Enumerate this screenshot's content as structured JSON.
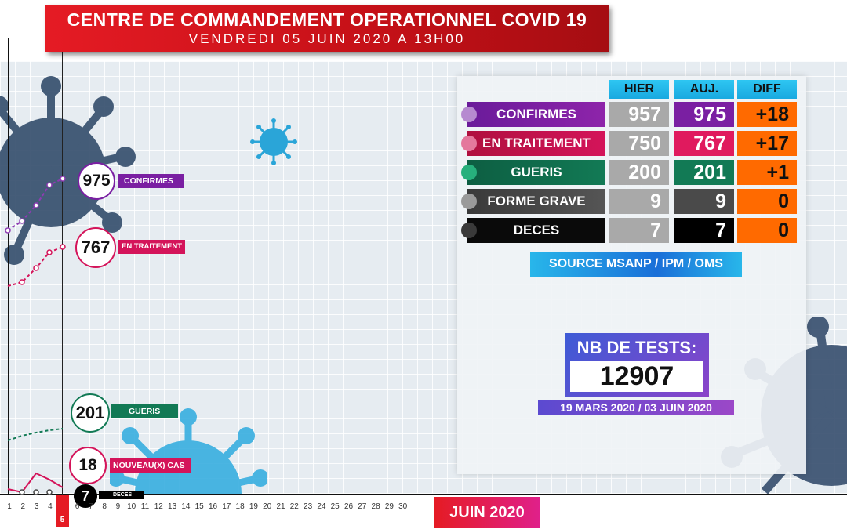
{
  "header": {
    "title": "CENTRE DE COMMANDEMENT OPERATIONNEL COVID 19",
    "subtitle": "VENDREDI 05 JUIN 2020 A 13H00"
  },
  "table": {
    "columns": [
      "HIER",
      "AUJ.",
      "DIFF"
    ],
    "rows": [
      {
        "label": "CONFIRMES",
        "hier": "957",
        "auj": "975",
        "diff": "+18",
        "color": "#7a1fa2"
      },
      {
        "label": "EN TRAITEMENT",
        "hier": "750",
        "auj": "767",
        "diff": "+17",
        "color": "#d4145a"
      },
      {
        "label": "GUERIS",
        "hier": "200",
        "auj": "201",
        "diff": "+1",
        "color": "#127a55"
      },
      {
        "label": "FORME GRAVE",
        "hier": "9",
        "auj": "9",
        "diff": "0",
        "color": "#4a4a4a"
      },
      {
        "label": "DECES",
        "hier": "7",
        "auj": "7",
        "diff": "0",
        "color": "#000000"
      }
    ],
    "source": "SOURCE MSANP / IPM / OMS"
  },
  "tests": {
    "label": "NB DE TESTS:",
    "value": "12907",
    "range": "19 MARS 2020 / 03 JUIN 2020"
  },
  "chart_labels": {
    "confirmes": {
      "value": "975",
      "tag": "CONFIRMES",
      "color": "#7a1fa2"
    },
    "traitement": {
      "value": "767",
      "tag": "EN TRAITEMENT",
      "color": "#d4145a"
    },
    "gueris": {
      "value": "201",
      "tag": "GUERIS",
      "color": "#127a55"
    },
    "nouveaux": {
      "value": "18",
      "tag": "NOUVEAU(X) CAS",
      "color": "#d4145a"
    },
    "deces": {
      "value": "7",
      "tag": "DECES",
      "color": "#000000"
    }
  },
  "x_axis": {
    "ticks": [
      "1",
      "2",
      "3",
      "4",
      "5",
      "6",
      "7",
      "8",
      "9",
      "10",
      "11",
      "12",
      "13",
      "14",
      "15",
      "16",
      "17",
      "18",
      "19",
      "20",
      "21",
      "22",
      "23",
      "24",
      "25",
      "26",
      "27",
      "28",
      "29",
      "30"
    ],
    "selected_day": "5",
    "month": "JUIN 2020"
  },
  "colors": {
    "accent_red": "#e51b24",
    "diff_orange": "#ff6a00",
    "header_cyan": "#19a9e0"
  }
}
